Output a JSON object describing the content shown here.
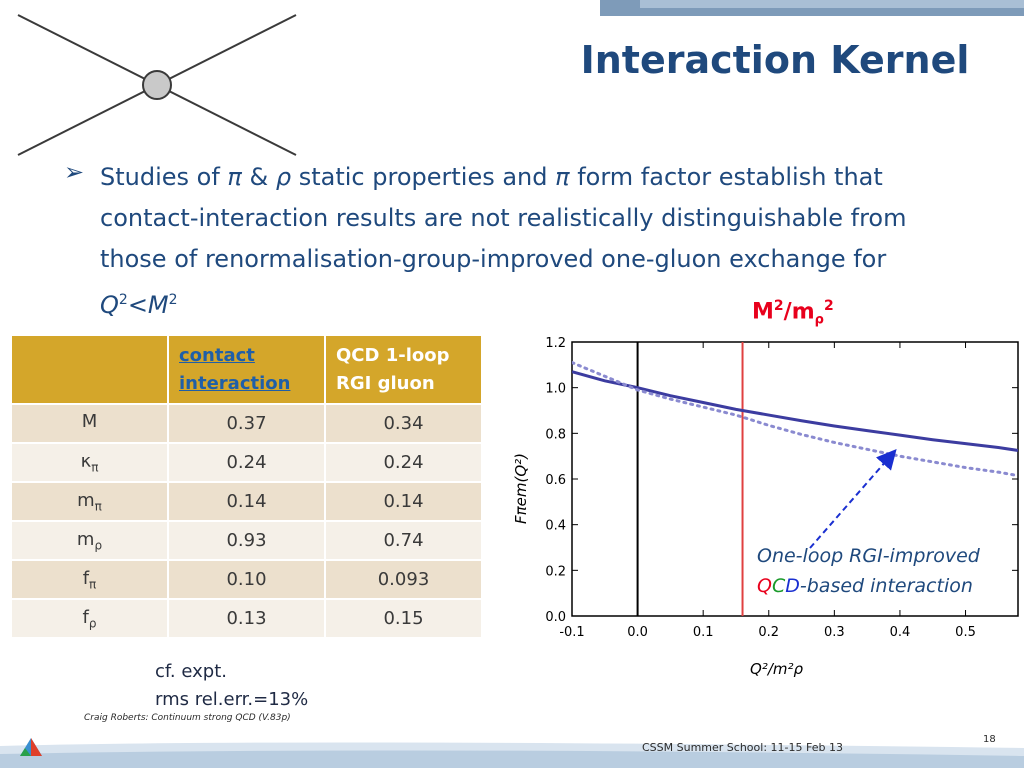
{
  "slide": {
    "title": "Interaction Kernel",
    "bullet_parts": {
      "p1": "Studies of ",
      "pi1": "π",
      "p2": " & ",
      "rho1": "ρ",
      "p3": " static properties and ",
      "pi2": "π",
      "p4": " form factor establish that contact-interaction results are not realistically distinguishable from those of renormalisation-group-improved one-gluon exchange for ",
      "q": "Q",
      "q_sup": "2",
      "lt": "<",
      "m": "M",
      "m_sup": "2"
    },
    "cf_note_line1": "cf. expt.",
    "cf_note_line2": "rms rel.err.=13%",
    "footer_credit": "Craig Roberts: Continuum strong QCD (V.83p)",
    "footer_school": "CSSM Summer School: 11-15 Feb 13",
    "page_number": "18"
  },
  "table": {
    "headers": [
      "",
      "contact interaction",
      "QCD 1-loop RGI gluon"
    ],
    "header_contact_line1": "contact",
    "header_contact_line2": "interaction",
    "header_qcd_line1": "QCD 1-loop",
    "header_qcd_line2": "RGI gluon",
    "rows": [
      {
        "label": "M",
        "sub": "",
        "contact": "0.37",
        "qcd": "0.34"
      },
      {
        "label": "κ",
        "sub": "π",
        "contact": "0.24",
        "qcd": "0.24"
      },
      {
        "label": "m",
        "sub": "π",
        "contact": "0.14",
        "qcd": "0.14"
      },
      {
        "label": "m",
        "sub": "ρ",
        "contact": "0.93",
        "qcd": "0.74"
      },
      {
        "label": "f",
        "sub": "π",
        "contact": "0.10",
        "qcd": "0.093"
      },
      {
        "label": "f",
        "sub": "ρ",
        "contact": "0.13",
        "qcd": "0.15"
      }
    ]
  },
  "annotations": {
    "marker_label_main": "M",
    "marker_label_sup": "2",
    "marker_label_slash": "/m",
    "marker_label_sub": "ρ",
    "marker_label_sup2": "2",
    "note_line1": "One-loop RGI-improved",
    "note_q": "Q",
    "note_c": "C",
    "note_d": "D",
    "note_rest": "-based  interaction"
  },
  "colors": {
    "title": "#1f497d",
    "table_header": "#d4a62a",
    "row_odd": "#ece0cd",
    "row_even": "#f5f0e8",
    "solid_curve": "#3c3ca0",
    "dotted_curve": "#8a8ad0",
    "marker_line": "#e04040",
    "arrow": "#1a2fd0",
    "red": "#e8001c",
    "green": "#1a9a2a",
    "blue": "#1a2fd0"
  },
  "chart_data": {
    "type": "line",
    "xlabel": "Q²/m²ρ",
    "ylabel": "Fπem(Q²)",
    "xlim": [
      -0.1,
      0.58
    ],
    "ylim": [
      0.0,
      1.2
    ],
    "xticks": [
      "-0.1",
      "0.0",
      "0.1",
      "0.2",
      "0.3",
      "0.4",
      "0.5"
    ],
    "yticks": [
      "0.0",
      "0.2",
      "0.4",
      "0.6",
      "0.8",
      "1.0",
      "1.2"
    ],
    "x_tick_values": [
      -0.1,
      0.0,
      0.1,
      0.2,
      0.3,
      0.4,
      0.5
    ],
    "y_tick_values": [
      0.0,
      0.2,
      0.4,
      0.6,
      0.8,
      1.0,
      1.2
    ],
    "vertical_lines": [
      {
        "x": 0.0,
        "color": "#000000"
      },
      {
        "x": 0.16,
        "color": "#e04040"
      }
    ],
    "series": [
      {
        "style": "solid",
        "x": [
          -0.1,
          -0.05,
          0.0,
          0.05,
          0.1,
          0.15,
          0.2,
          0.25,
          0.3,
          0.35,
          0.4,
          0.45,
          0.5,
          0.55,
          0.58
        ],
        "y": [
          1.07,
          1.03,
          1.0,
          0.965,
          0.935,
          0.905,
          0.88,
          0.855,
          0.832,
          0.812,
          0.792,
          0.772,
          0.755,
          0.738,
          0.725
        ]
      },
      {
        "style": "dotted",
        "x": [
          -0.1,
          -0.05,
          0.0,
          0.05,
          0.1,
          0.15,
          0.2,
          0.25,
          0.3,
          0.35,
          0.4,
          0.45,
          0.5,
          0.55,
          0.58
        ],
        "y": [
          1.11,
          1.05,
          0.99,
          0.95,
          0.915,
          0.88,
          0.835,
          0.795,
          0.76,
          0.73,
          0.7,
          0.675,
          0.65,
          0.63,
          0.615
        ]
      }
    ]
  }
}
